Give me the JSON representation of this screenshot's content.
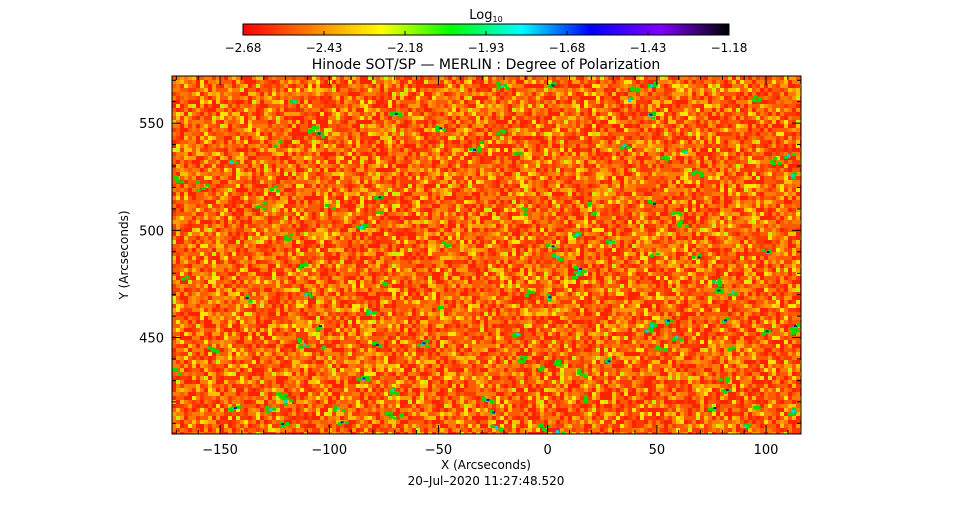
{
  "chart_data": {
    "type": "heatmap",
    "title": "Hinode SOT/SP — MERLIN : Degree of Polarization",
    "xlabel": "X (Arcseconds)",
    "ylabel": "Y (Arcseconds)",
    "xlim": [
      -172,
      116
    ],
    "ylim": [
      405,
      572
    ],
    "x_ticks": [
      -150,
      -100,
      -50,
      0,
      50,
      100
    ],
    "y_ticks": [
      450,
      500,
      550
    ],
    "x_tick_labels": [
      "−150",
      "−100",
      "−50",
      "0",
      "50",
      "100"
    ],
    "y_tick_labels": [
      "450",
      "500",
      "550"
    ],
    "colorbar": {
      "label_base": "Log",
      "label_sub": "10",
      "range": [
        -2.68,
        -1.18
      ],
      "ticks": [
        -2.68,
        -2.43,
        -2.18,
        -1.93,
        -1.68,
        -1.43,
        -1.18
      ],
      "tick_labels": [
        "−2.68",
        "−2.43",
        "−2.18",
        "−1.93",
        "−1.68",
        "−1.43",
        "−1.18"
      ],
      "colormap": [
        "#ff0000",
        "#ff8000",
        "#ffff00",
        "#00ff00",
        "#00ffff",
        "#0000ff",
        "#8000ff",
        "#000000"
      ]
    },
    "grid": false,
    "timestamp": "20–Jul–2020 11:27:48.520"
  }
}
